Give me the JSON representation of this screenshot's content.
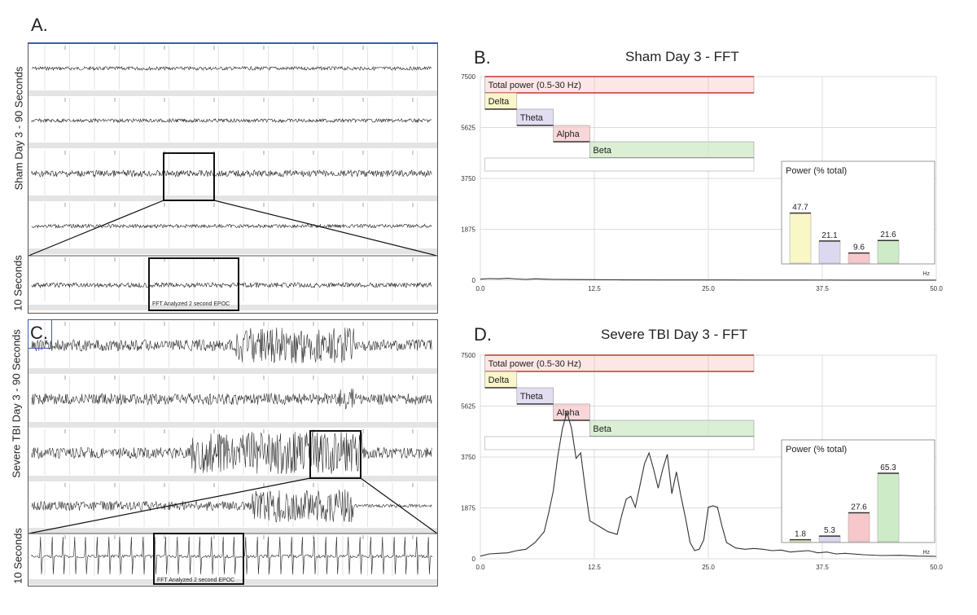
{
  "panels": {
    "a": {
      "letter": "A.",
      "label_top": "Sham Day 3 - 90 Seconds",
      "label_bottom": "10 Seconds",
      "epoc_label": "FFT Analyzed 2 second EPOC"
    },
    "b": {
      "letter": "B.",
      "title": "Sham Day 3 - FFT"
    },
    "c": {
      "letter": "C.",
      "label_top": "Severe TBI Day 3 - 90 Seconds",
      "label_bottom": "10 Seconds",
      "epoc_label": "FFT Analyzed 2 second EPOC"
    },
    "d": {
      "letter": "D.",
      "title": "Severe TBI Day 3 - FFT"
    }
  },
  "chart_data": [
    {
      "id": "sham",
      "type": "line",
      "title": "Sham Day 3 - FFT",
      "xlabel": "Hz",
      "ylabel": "",
      "xlim": [
        0,
        50
      ],
      "ylim": [
        0,
        7500
      ],
      "x_ticks": [
        "0.0",
        "12.5",
        "25.0",
        "37.5",
        "50.0"
      ],
      "y_ticks": [
        "0",
        "1875",
        "3750",
        "5625",
        "7500"
      ],
      "series": [
        {
          "name": "FFT power",
          "x": [
            0,
            1,
            2,
            3,
            4,
            5,
            6,
            7,
            8,
            10,
            12,
            15,
            20,
            25,
            30,
            35,
            40,
            45,
            50
          ],
          "values": [
            40,
            60,
            50,
            70,
            45,
            30,
            50,
            40,
            30,
            25,
            20,
            15,
            10,
            8,
            6,
            5,
            4,
            3,
            3
          ]
        }
      ],
      "bands": [
        {
          "name": "Total power (0.5-30 Hz)",
          "range": [
            0.5,
            30
          ],
          "color": "#f5b7b7"
        },
        {
          "name": "Delta",
          "range": [
            0.5,
            4
          ],
          "color": "#faf3b8"
        },
        {
          "name": "Theta",
          "range": [
            4,
            8
          ],
          "color": "#d9d2ec"
        },
        {
          "name": "Alpha",
          "range": [
            8,
            12
          ],
          "color": "#f7c9cc"
        },
        {
          "name": "Beta",
          "range": [
            12,
            30
          ],
          "color": "#cde9c6"
        }
      ],
      "inset": {
        "title": "Power (% total)",
        "unit": "Hz",
        "bars": [
          {
            "name": "Delta",
            "value": 47.7,
            "label": "47.7",
            "color": "#faf7c6"
          },
          {
            "name": "Theta",
            "value": 21.1,
            "label": "21.1",
            "color": "#dcd8f0"
          },
          {
            "name": "Alpha",
            "value": 9.6,
            "label": "9.6",
            "color": "#f7c7cc"
          },
          {
            "name": "Beta",
            "value": 21.6,
            "label": "21.6",
            "color": "#cdebc6"
          }
        ]
      }
    },
    {
      "id": "tbi",
      "type": "line",
      "title": "Severe TBI Day 3 - FFT",
      "xlabel": "Hz",
      "ylabel": "",
      "xlim": [
        0,
        50
      ],
      "ylim": [
        0,
        7500
      ],
      "x_ticks": [
        "0.0",
        "12.5",
        "25.0",
        "37.5",
        "50.0"
      ],
      "y_ticks": [
        "0",
        "1875",
        "3750",
        "5625",
        "7500"
      ],
      "series": [
        {
          "name": "FFT power",
          "x": [
            0,
            1,
            2,
            3,
            4,
            5,
            6,
            7,
            7.5,
            8,
            8.5,
            9,
            9.5,
            10,
            10.5,
            11,
            11.5,
            12,
            13,
            14,
            15,
            15.5,
            16,
            16.5,
            17,
            17.5,
            18,
            18.5,
            19,
            19.5,
            20,
            20.5,
            21,
            21.5,
            22,
            22.5,
            23,
            23.5,
            24,
            24.5,
            25,
            25.5,
            26,
            26.5,
            27,
            28,
            29,
            30,
            31,
            32,
            33,
            34,
            35,
            36,
            37,
            38,
            39,
            40,
            42,
            44,
            46,
            48,
            50
          ],
          "values": [
            100,
            180,
            200,
            220,
            300,
            350,
            600,
            1000,
            1700,
            2500,
            3800,
            4800,
            5400,
            4800,
            3700,
            3900,
            2600,
            1400,
            1200,
            1000,
            900,
            1600,
            2200,
            2300,
            1900,
            2700,
            3500,
            3900,
            3300,
            2600,
            3300,
            3850,
            2400,
            3200,
            2300,
            1500,
            600,
            300,
            350,
            700,
            1900,
            1950,
            1900,
            1200,
            600,
            400,
            350,
            380,
            350,
            300,
            320,
            250,
            280,
            300,
            220,
            250,
            180,
            200,
            150,
            120,
            130,
            100,
            90
          ]
        }
      ],
      "bands": [
        {
          "name": "Total power (0.5-30 Hz)",
          "range": [
            0.5,
            30
          ],
          "color": "#f5b7b7"
        },
        {
          "name": "Delta",
          "range": [
            0.5,
            4
          ],
          "color": "#faf3b8"
        },
        {
          "name": "Theta",
          "range": [
            4,
            8
          ],
          "color": "#d9d2ec"
        },
        {
          "name": "Alpha",
          "range": [
            8,
            12
          ],
          "color": "#f7c9cc"
        },
        {
          "name": "Beta",
          "range": [
            12,
            30
          ],
          "color": "#cde9c6"
        }
      ],
      "inset": {
        "title": "Power (% total)",
        "unit": "Hz",
        "bars": [
          {
            "name": "Delta",
            "value": 1.8,
            "label": "1.8",
            "color": "#faf7c6"
          },
          {
            "name": "Theta",
            "value": 5.3,
            "label": "5.3",
            "color": "#dcd8f0"
          },
          {
            "name": "Alpha",
            "value": 27.6,
            "label": "27.6",
            "color": "#f7c7cc"
          },
          {
            "name": "Beta",
            "value": 65.3,
            "label": "65.3",
            "color": "#cdebc6"
          }
        ]
      }
    }
  ]
}
